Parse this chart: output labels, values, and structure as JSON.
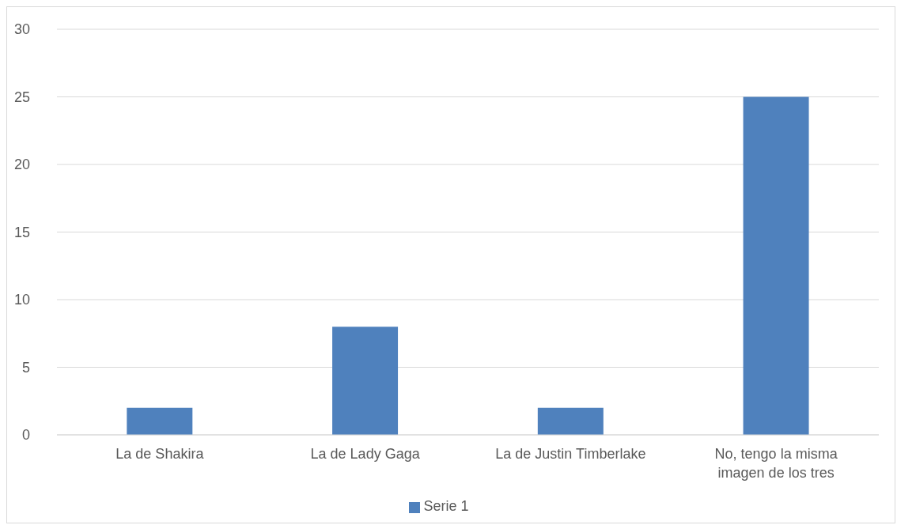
{
  "chart_data": {
    "type": "bar",
    "categories": [
      "La de Shakira",
      "La de Lady Gaga",
      "La de Justin Timberlake",
      "No, tengo la misma imagen de los tres"
    ],
    "series": [
      {
        "name": "Serie 1",
        "color": "#4f81bd",
        "values": [
          2,
          8,
          2,
          25
        ]
      }
    ],
    "ylim": [
      0,
      30
    ],
    "yticks": [
      0,
      5,
      10,
      15,
      20,
      25,
      30
    ],
    "grid": "y",
    "legend": "bottom"
  }
}
